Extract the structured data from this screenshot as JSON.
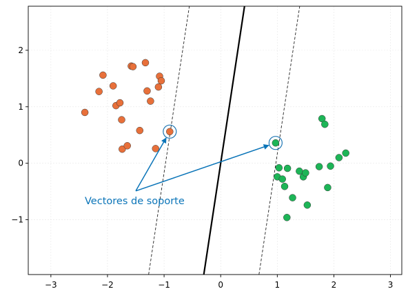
{
  "chart_data": {
    "type": "scatter",
    "title": "",
    "xlabel": "",
    "ylabel": "",
    "xlim": [
      -3.4,
      3.2
    ],
    "ylim": [
      -1.97,
      2.78
    ],
    "x_ticks": [
      -3,
      -2,
      -1,
      0,
      1,
      2,
      3
    ],
    "y_ticks": [
      -1,
      0,
      1,
      2
    ],
    "x_tick_labels": [
      "−3",
      "−2",
      "−1",
      "0",
      "1",
      "2",
      "3"
    ],
    "y_tick_labels": [
      "−1",
      "0",
      "1",
      "2"
    ],
    "grid": true,
    "colors": {
      "class_a": "#E8703A",
      "class_b": "#1DB557",
      "support_ring": "#1F77B4",
      "annotation": "#0A74B8",
      "decision_line": "#000000",
      "margin_line": "#222222"
    },
    "series": [
      {
        "points": [
          [
            -2.4,
            0.9
          ],
          [
            -2.15,
            1.27
          ],
          [
            -2.08,
            1.56
          ],
          [
            -1.9,
            1.37
          ],
          [
            -1.85,
            1.02
          ],
          [
            -1.78,
            1.07
          ],
          [
            -1.75,
            0.77
          ],
          [
            -1.74,
            0.25
          ],
          [
            -1.65,
            0.31
          ],
          [
            -1.58,
            1.72
          ],
          [
            -1.55,
            1.71
          ],
          [
            -1.43,
            0.58
          ],
          [
            -1.33,
            1.78
          ],
          [
            -1.3,
            1.28
          ],
          [
            -1.24,
            1.1
          ],
          [
            -1.15,
            0.26
          ],
          [
            -1.1,
            1.35
          ],
          [
            -1.08,
            1.54
          ],
          [
            -1.05,
            1.46
          ],
          [
            -0.9,
            0.56
          ]
        ]
      },
      {
        "points": [
          [
            0.97,
            0.36
          ],
          [
            1.0,
            -0.24
          ],
          [
            1.03,
            -0.08
          ],
          [
            1.09,
            -0.28
          ],
          [
            1.13,
            -0.41
          ],
          [
            1.17,
            -0.96
          ],
          [
            1.18,
            -0.09
          ],
          [
            1.27,
            -0.61
          ],
          [
            1.39,
            -0.14
          ],
          [
            1.46,
            -0.24
          ],
          [
            1.5,
            -0.17
          ],
          [
            1.53,
            -0.74
          ],
          [
            1.74,
            -0.06
          ],
          [
            1.79,
            0.79
          ],
          [
            1.84,
            0.69
          ],
          [
            1.89,
            -0.43
          ],
          [
            1.94,
            -0.05
          ],
          [
            2.09,
            0.1
          ],
          [
            2.21,
            0.18
          ]
        ]
      }
    ],
    "support_vectors": [
      [
        -0.9,
        0.56
      ],
      [
        0.97,
        0.36
      ]
    ],
    "decision_boundary": {
      "slope": 6.6,
      "intercept": 0.0
    },
    "margin_offsets": [
      -0.975,
      0.975
    ],
    "annotation": {
      "text": "Vectores de soporte",
      "origin": [
        -1.5,
        -0.49
      ],
      "targets": [
        [
          -0.9,
          0.56
        ],
        [
          0.97,
          0.36
        ]
      ]
    }
  }
}
